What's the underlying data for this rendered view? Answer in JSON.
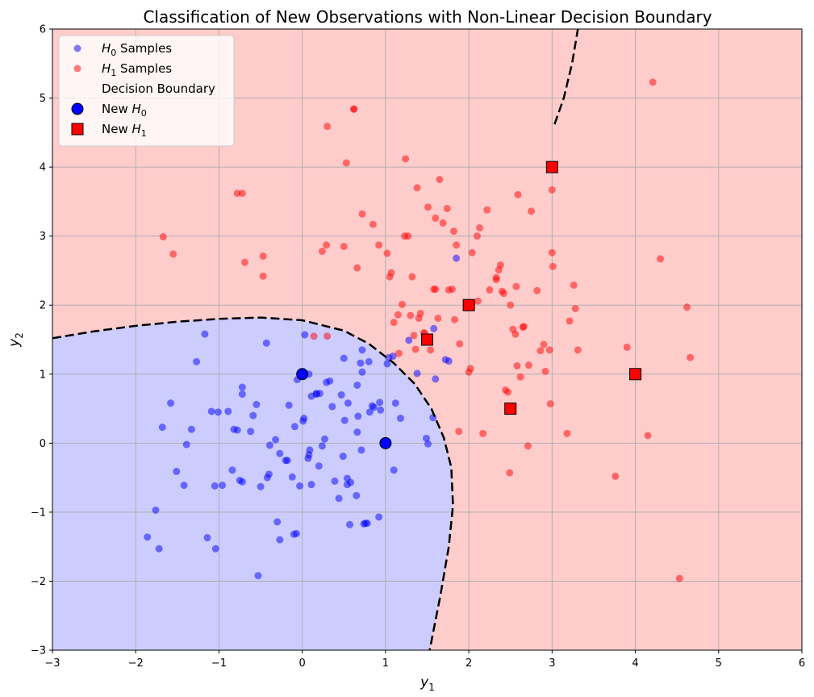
{
  "chart_data": {
    "type": "scatter",
    "title": "Classification of New Observations with Non-Linear Decision Boundary",
    "xlabel": "y",
    "xlabel_sub": "1",
    "ylabel": "y",
    "ylabel_sub": "2",
    "xlim": [
      -3,
      6
    ],
    "ylim": [
      -3,
      6
    ],
    "xticks": [
      -3,
      -2,
      -1,
      0,
      1,
      2,
      3,
      4,
      5,
      6
    ],
    "yticks": [
      -3,
      -2,
      -1,
      0,
      1,
      2,
      3,
      4,
      5,
      6
    ],
    "grid": true,
    "legend_position": "top-left",
    "colors": {
      "h1_region": "#ffcccc",
      "h0_region": "#ccccff",
      "h0_points": "#0000ff",
      "h1_points": "#ff0000",
      "boundary": "#000000",
      "grid": "#b0b0b0"
    },
    "legend": [
      {
        "key": "h0",
        "prefix": "H",
        "sub": "0",
        "suffix": " Samples",
        "marker": "circle-small-blue"
      },
      {
        "key": "h1",
        "prefix": "H",
        "sub": "1",
        "suffix": " Samples",
        "marker": "circle-small-red"
      },
      {
        "key": "boundary",
        "prefix": "",
        "sub": "",
        "suffix": "Decision Boundary",
        "marker": "none"
      },
      {
        "key": "new0",
        "prefix": "New H",
        "sub": "0",
        "suffix": "",
        "marker": "circle-large-blue"
      },
      {
        "key": "new1",
        "prefix": "New H",
        "sub": "1",
        "suffix": "",
        "marker": "square-large-red"
      }
    ],
    "decision_boundary": {
      "lower_branch": [
        [
          -3,
          1.52
        ],
        [
          -2.5,
          1.62
        ],
        [
          -2,
          1.7
        ],
        [
          -1.5,
          1.76
        ],
        [
          -1,
          1.8
        ],
        [
          -0.5,
          1.82
        ],
        [
          0,
          1.78
        ],
        [
          0.5,
          1.63
        ],
        [
          0.8,
          1.44
        ],
        [
          1.1,
          1.16
        ],
        [
          1.35,
          0.86
        ],
        [
          1.55,
          0.5
        ],
        [
          1.7,
          0.08
        ],
        [
          1.79,
          -0.35
        ],
        [
          1.81,
          -0.9
        ],
        [
          1.76,
          -1.5
        ],
        [
          1.66,
          -2.2
        ],
        [
          1.53,
          -3
        ]
      ],
      "upper_branch": [
        [
          3.03,
          4.62
        ],
        [
          3.14,
          5.0
        ],
        [
          3.24,
          5.5
        ],
        [
          3.31,
          6.0
        ],
        [
          3.38,
          6.5
        ]
      ]
    },
    "h0_samples": {
      "x": [
        0.03,
        0.33,
        0.72,
        0.5,
        0.08,
        -0.06,
        -0.43,
        -0.55,
        0.55,
        0.27,
        -0.32,
        0.93,
        -0.53,
        -0.1,
        0.74,
        0.57,
        0.71,
        0.78,
        -0.89,
        -0.62,
        -0.72,
        -0.82,
        -1.17,
        0.17,
        -1.27,
        0.66,
        0.09,
        0.67,
        0.81,
        1.09,
        -0.16,
        0.21,
        -1.39,
        -1.01,
        -1.09,
        -0.75,
        0.11,
        -0.39,
        0.01,
        -0.4,
        -0.2,
        0.44,
        0.51,
        0.54,
        0.65,
        0.84,
        -1.42,
        -1.05,
        -1.76,
        -1.86,
        -1.14,
        -0.59,
        -0.72,
        -0.09,
        -0.18,
        -0.72,
        0.47,
        0.29,
        0.94,
        1.04,
        1.12,
        1.28,
        -0.12,
        -0.3,
        -0.84,
        0.24,
        0.66,
        1.38,
        1.57,
        1.49,
        1.6,
        1.51,
        1.58,
        1.72,
        1.76,
        1.85,
        -1.33,
        -1.58,
        -1.72,
        -0.27,
        -0.03,
        0.02,
        0.07,
        0.2,
        0.36,
        0.54,
        0.58,
        0.7,
        0.76,
        0.8,
        0.86,
        0.92,
        1.1,
        1.02,
        1.18,
        -0.07,
        0.11,
        -0.78,
        -0.42,
        -1.68,
        -1.51,
        -1.04,
        -0.96,
        -0.5,
        -0.27,
        0.08,
        0.17,
        0.39,
        0.49,
        0.72
      ],
      "y": [
        1.57,
        0.9,
        1.35,
        1.23,
        1.0,
        0.92,
        1.45,
        0.56,
        0.58,
        0.06,
        0.05,
        0.59,
        -1.92,
        -1.32,
        -1.17,
        -1.18,
        -0.1,
        -1.16,
        0.46,
        0.17,
        0.81,
        0.2,
        1.58,
        0.71,
        1.18,
        0.16,
        -0.1,
        0.39,
        0.45,
        1.26,
        0.55,
        0.72,
        -0.02,
        0.45,
        0.46,
        -0.54,
        0.68,
        -0.03,
        0.32,
        -0.45,
        -0.25,
        -0.8,
        0.33,
        -0.51,
        -0.76,
        0.54,
        -0.61,
        -0.62,
        -0.97,
        -1.36,
        -1.37,
        0.4,
        0.71,
        0.24,
        -0.25,
        -0.56,
        0.7,
        0.88,
        0.48,
        1.24,
        0.58,
        1.49,
        -0.49,
        -1.14,
        -0.39,
        -0.04,
        0.84,
        1.01,
        0.37,
        0.07,
        0.93,
        -0.01,
        1.66,
        1.21,
        1.19,
        2.68,
        0.2,
        0.58,
        -1.53,
        -0.15,
        -0.62,
        0.36,
        -0.22,
        -0.33,
        0.53,
        -0.6,
        -0.57,
        1.16,
        -1.16,
        1.18,
        0.52,
        -1.07,
        -0.39,
        1.15,
        0.36,
        -1.31,
        -0.6,
        0.19,
        -0.5,
        0.23,
        -0.41,
        -1.53,
        -0.61,
        -0.63,
        -1.4,
        -0.17,
        0.72,
        -0.55,
        -0.19,
        1.03
      ],
      "color": "#0000ff"
    },
    "h1_samples": {
      "x": [
        4.21,
        -1.67,
        -1.55,
        -0.78,
        -0.72,
        -0.69,
        -0.47,
        -0.47,
        0.24,
        0.29,
        0.3,
        0.5,
        0.53,
        0.62,
        0.66,
        0.72,
        0.85,
        0.92,
        1.02,
        1.07,
        1.1,
        1.15,
        1.2,
        1.24,
        1.27,
        1.32,
        1.36,
        1.42,
        1.46,
        1.51,
        1.58,
        1.6,
        1.65,
        1.69,
        1.74,
        1.76,
        1.82,
        1.85,
        1.89,
        2.0,
        2.02,
        2.04,
        2.1,
        2.13,
        2.22,
        2.33,
        2.36,
        2.38,
        2.42,
        2.47,
        2.53,
        2.56,
        2.59,
        2.62,
        2.66,
        2.72,
        2.82,
        2.86,
        2.9,
        2.92,
        3.0,
        3.0,
        3.01,
        3.18,
        3.21,
        3.26,
        3.28,
        3.31,
        3.76,
        3.9,
        4.15,
        4.3,
        4.53,
        4.62,
        4.66,
        2.44,
        2.49,
        2.71,
        2.75,
        2.98,
        1.16,
        1.3,
        1.34,
        1.4,
        1.47,
        1.54,
        1.63,
        1.83,
        1.88,
        2.04,
        2.11,
        2.17,
        2.25,
        2.33,
        2.4,
        2.5,
        2.58,
        2.65,
        0.62,
        0.3,
        0.14,
        2.57,
        2.97,
        1.6,
        1.05,
        1.38,
        1.8,
        1.23
      ],
      "y": [
        5.23,
        2.99,
        2.74,
        3.62,
        3.62,
        2.62,
        2.71,
        2.42,
        2.78,
        2.87,
        4.59,
        2.85,
        4.06,
        4.84,
        2.54,
        3.32,
        3.17,
        2.87,
        2.75,
        2.47,
        1.75,
        1.86,
        2.01,
        4.12,
        3.0,
        2.41,
        1.36,
        1.88,
        1.6,
        3.42,
        2.23,
        3.26,
        3.82,
        3.19,
        3.4,
        2.22,
        3.07,
        2.87,
        1.44,
        1.03,
        1.08,
        2.76,
        3.0,
        3.12,
        3.38,
        2.37,
        2.51,
        2.58,
        2.17,
        0.74,
        1.65,
        1.58,
        3.6,
        0.96,
        1.69,
        1.13,
        2.21,
        1.34,
        1.43,
        1.04,
        3.67,
        2.76,
        2.56,
        0.14,
        1.77,
        2.29,
        1.95,
        1.35,
        -0.48,
        1.39,
        0.11,
        2.67,
        -1.96,
        1.97,
        1.24,
        0.77,
        -0.43,
        -0.04,
        3.36,
        0.57,
        1.3,
        1.85,
        1.56,
        1.81,
        1.59,
        1.35,
        1.81,
        1.79,
        0.17,
        2.03,
        2.06,
        0.14,
        2.22,
        2.4,
        2.2,
        2.0,
        1.12,
        1.68,
        4.84,
        1.55,
        1.55,
        2.27,
        1.35,
        2.23,
        2.41,
        3.7,
        2.23,
        3.0
      ],
      "color": "#ff0000"
    },
    "new_observations": [
      {
        "x": 0,
        "y": 1,
        "class": "H0"
      },
      {
        "x": 1,
        "y": 0,
        "class": "H0"
      },
      {
        "x": 1.5,
        "y": 1.5,
        "class": "H1"
      },
      {
        "x": 2,
        "y": 2,
        "class": "H1"
      },
      {
        "x": 2.5,
        "y": 0.5,
        "class": "H1"
      },
      {
        "x": 3,
        "y": 4,
        "class": "H1"
      },
      {
        "x": 4,
        "y": 1,
        "class": "H1"
      }
    ]
  }
}
